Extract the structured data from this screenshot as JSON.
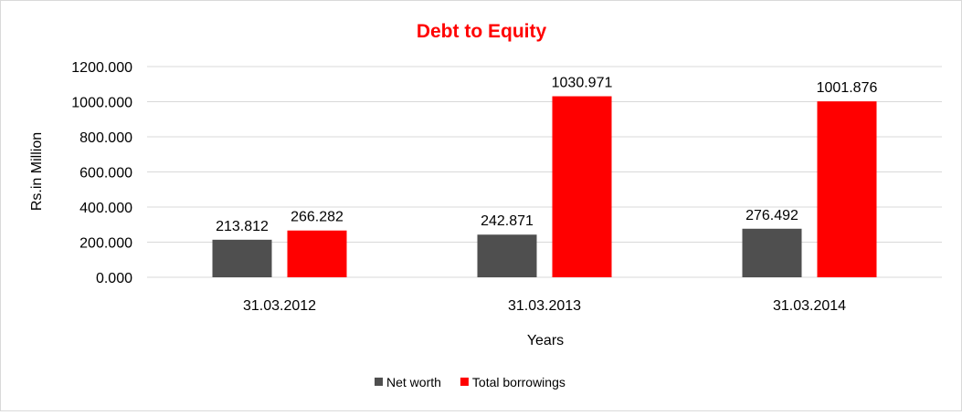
{
  "chart_data": {
    "type": "bar",
    "title": "Debt to Equity",
    "xlabel": "Years",
    "ylabel": "Rs.in Million",
    "categories": [
      "31.03.2012",
      "31.03.2013",
      "31.03.2014"
    ],
    "series": [
      {
        "name": "Net worth",
        "color": "#4f4f4f",
        "values": [
          213.812,
          242.871,
          276.492
        ]
      },
      {
        "name": "Total borrowings",
        "color": "#ff0000",
        "values": [
          266.282,
          1030.971,
          1001.876
        ]
      }
    ],
    "ylim": [
      0,
      1200
    ],
    "yticks": [
      "0.000",
      "200.000",
      "400.000",
      "600.000",
      "800.000",
      "1000.000",
      "1200.000"
    ],
    "data_labels": [
      [
        "213.812",
        "242.871",
        "276.492"
      ],
      [
        "266.282",
        "1030.971",
        "1001.876"
      ]
    ],
    "title_color": "#ff0000",
    "grid": true,
    "legend_position": "bottom"
  }
}
